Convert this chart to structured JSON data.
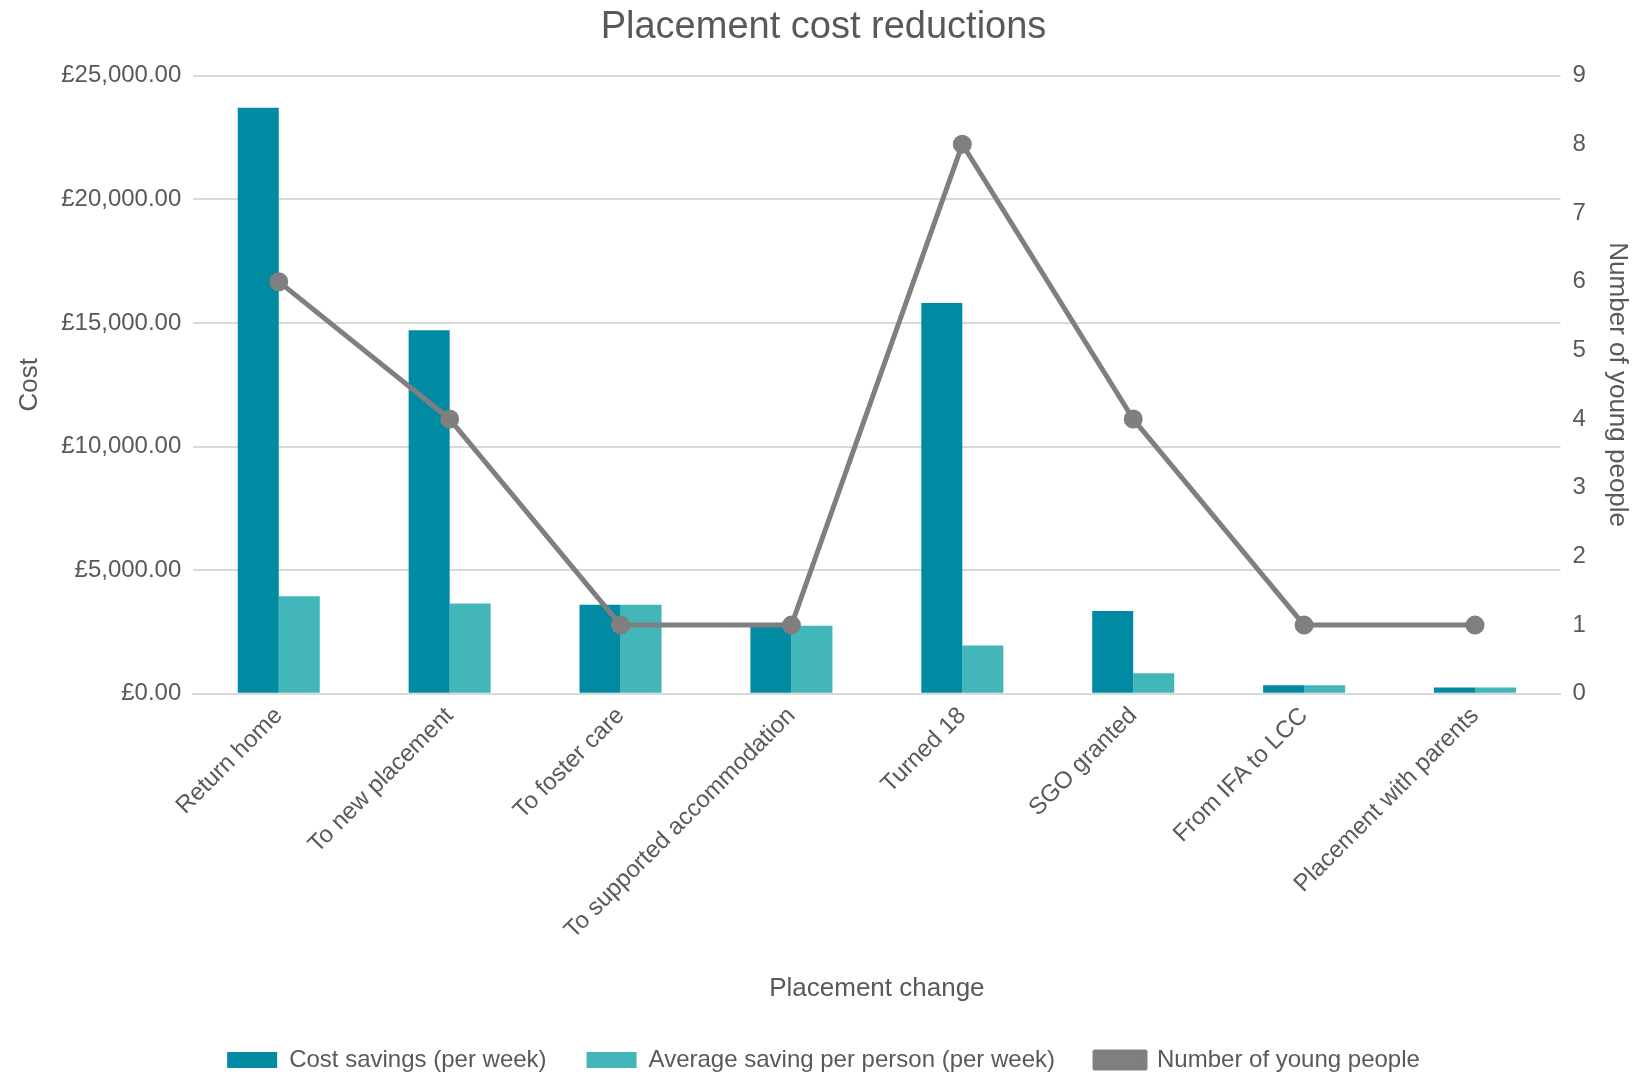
{
  "chart_data": {
    "type": "bar",
    "title": "Placement cost reductions",
    "xlabel": "Placement change",
    "ylabel": "Cost",
    "y2label": "Number of young people",
    "categories": [
      "Return home",
      "To new placement",
      "To foster care",
      "To supported accommodation",
      "Turned 18",
      "SGO granted",
      "From IFA to LCC",
      "Placement with parents"
    ],
    "series": [
      {
        "name": "Cost savings (per week)",
        "color": "#008ba3",
        "values": [
          23700,
          14700,
          3600,
          2750,
          15800,
          3350,
          350,
          250
        ]
      },
      {
        "name": "Average saving per person (per week)",
        "color": "#43b6b9",
        "values": [
          3950,
          3650,
          3600,
          2750,
          1950,
          830,
          350,
          250
        ]
      },
      {
        "name": "Number of young people",
        "type": "line",
        "axis": "y2",
        "color": "#7f7f7f",
        "values": [
          6,
          4,
          1,
          1,
          8,
          4,
          1,
          1
        ]
      }
    ],
    "ylim": [
      0,
      25000
    ],
    "yticks": [
      {
        "value": 0,
        "label": "£0.00"
      },
      {
        "value": 5000,
        "label": "£5,000.00"
      },
      {
        "value": 10000,
        "label": "£10,000.00"
      },
      {
        "value": 15000,
        "label": "£15,000.00"
      },
      {
        "value": 20000,
        "label": "£20,000.00"
      },
      {
        "value": 25000,
        "label": "£25,000.00"
      }
    ],
    "y2lim": [
      0,
      9
    ],
    "y2ticks": [
      0,
      1,
      2,
      3,
      4,
      5,
      6,
      7,
      8,
      9
    ],
    "grid": "y",
    "legend": "bottom",
    "marker": "circle",
    "line_style": "solid"
  }
}
